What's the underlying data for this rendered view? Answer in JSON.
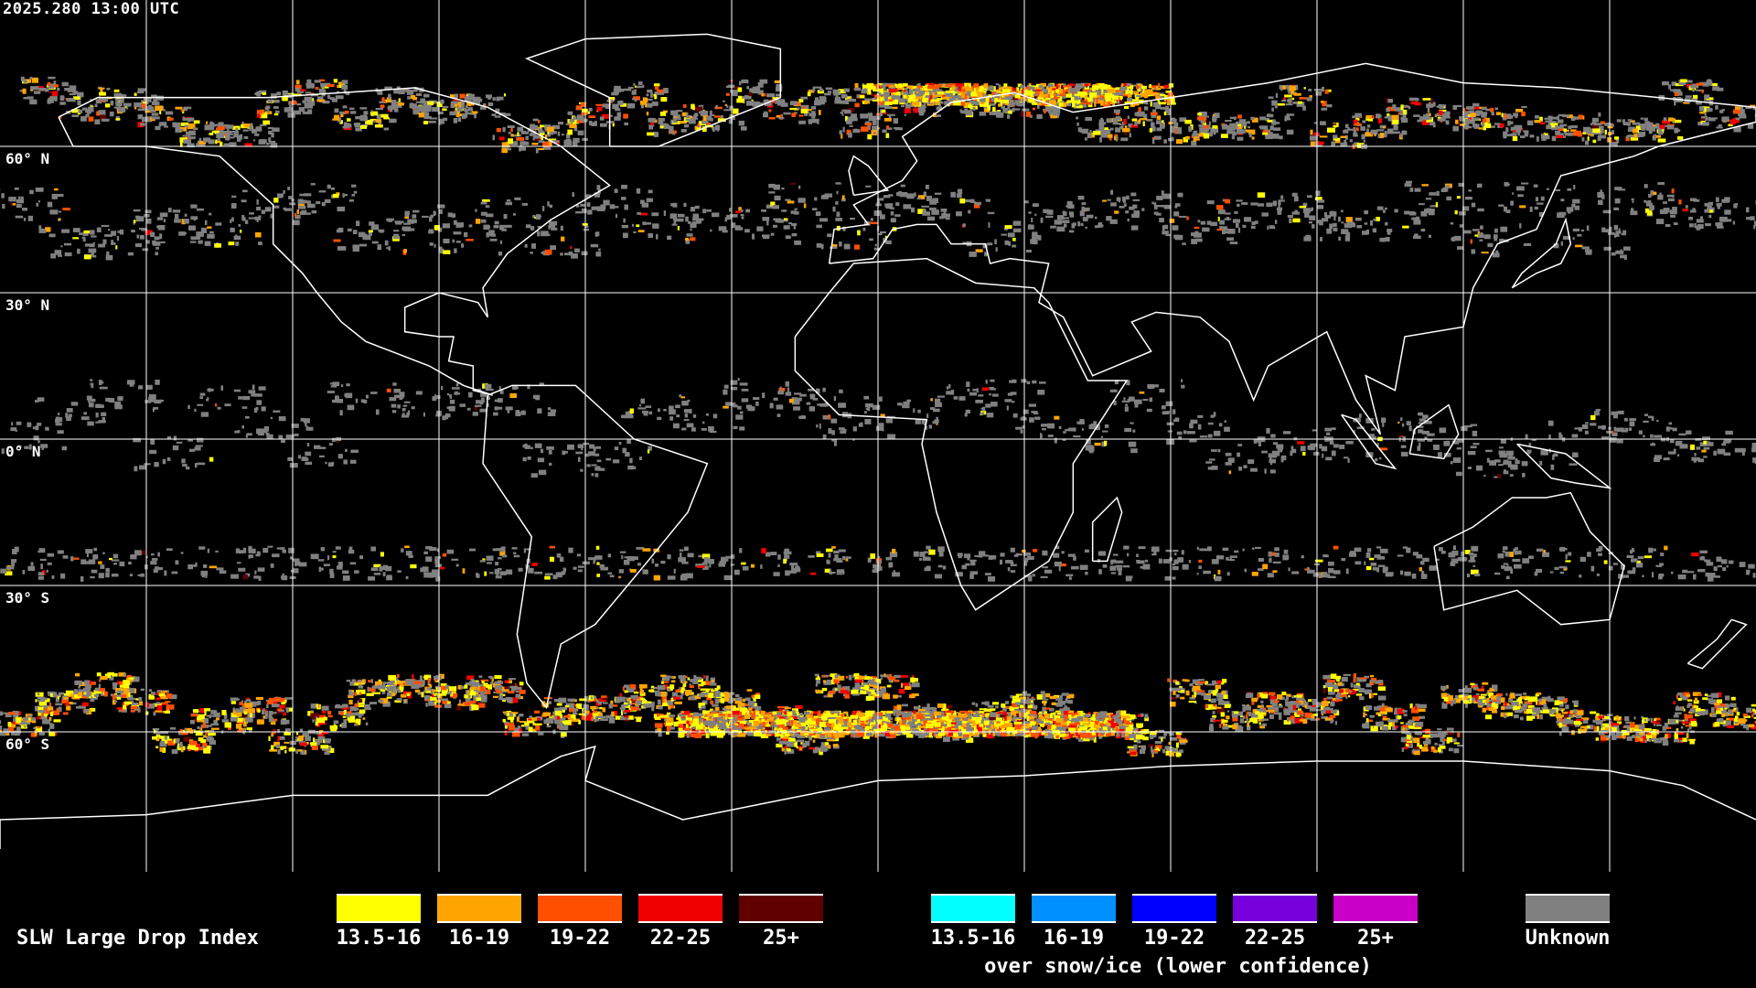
{
  "header": {
    "timestamp": "2025.280 13:00 UTC"
  },
  "map": {
    "projection": "equirectangular",
    "latitude_labels": [
      "60° N",
      "30° N",
      "0° N",
      "30° S",
      "60° S"
    ],
    "coastline_color": "#ffffff",
    "gridline_color": "#ffffff",
    "background_color": "#000000"
  },
  "legend": {
    "title": "SLW Large Drop Index",
    "items": [
      {
        "label": "13.5-16",
        "color": "#ffff00"
      },
      {
        "label": "16-19",
        "color": "#ffa500"
      },
      {
        "label": "19-22",
        "color": "#ff5000"
      },
      {
        "label": "22-25",
        "color": "#f00000"
      },
      {
        "label": "25+",
        "color": "#600000"
      }
    ],
    "snow_items": [
      {
        "label": "13.5-16",
        "color": "#00ffff"
      },
      {
        "label": "16-19",
        "color": "#0090ff"
      },
      {
        "label": "19-22",
        "color": "#0000ff"
      },
      {
        "label": "22-25",
        "color": "#7800dc"
      },
      {
        "label": "25+",
        "color": "#c800c8"
      }
    ],
    "snow_note": "over snow/ice (lower confidence)",
    "unknown": {
      "label": "Unknown",
      "color": "#808080"
    }
  }
}
